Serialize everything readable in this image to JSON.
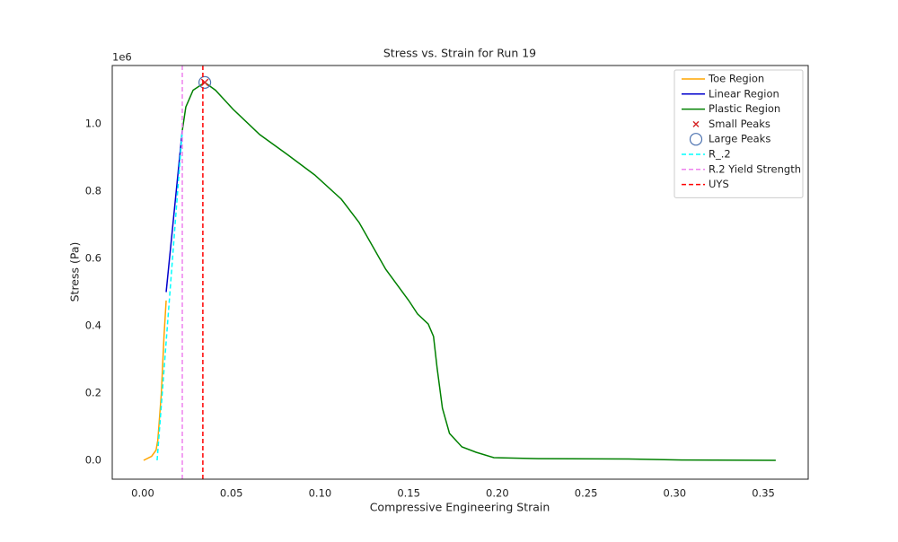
{
  "chart_data": {
    "type": "line",
    "title": "Stress vs. Strain for Run 19",
    "x_label": "Compressive Engineering Strain",
    "y_label": "Stress (Pa)",
    "y_offset_label": "1e6",
    "xlim": [
      -0.0172,
      0.3753
    ],
    "ylim": [
      -56000,
      1173300
    ],
    "xticks": [
      {
        "value": 0,
        "label": "0.00"
      },
      0.05,
      {
        "value": 0.1,
        "label": "0.10"
      },
      0.15,
      {
        "value": 0.2,
        "label": "0.20"
      },
      0.25,
      {
        "value": 0.3,
        "label": "0.30"
      },
      0.35
    ],
    "yticks": [
      {
        "value": 0,
        "label": "0.0"
      },
      {
        "value": 200000,
        "label": "0.2"
      },
      {
        "value": 400000,
        "label": "0.4"
      },
      {
        "value": 600000,
        "label": "0.6"
      },
      {
        "value": 800000,
        "label": "0.8"
      },
      {
        "value": 1000000,
        "label": "1.0"
      }
    ],
    "grid": false,
    "legend": "upper right",
    "series": [
      {
        "name": "Toe Region",
        "color": "orange",
        "style": "solid",
        "x": [
          0.0005,
          0.005,
          0.0075,
          0.0085,
          0.0105,
          0.012,
          0.0132
        ],
        "values": [
          0,
          12000,
          30000,
          60000,
          200000,
          370000,
          475000
        ]
      },
      {
        "name": "Linear Region",
        "color": "#0000cd",
        "style": "solid",
        "x": [
          0.0132,
          0.0223
        ],
        "values": [
          500000,
          980000
        ]
      },
      {
        "name": "Plastic Region",
        "color": "green",
        "style": "solid",
        "x": [
          0.0223,
          0.0243,
          0.0284,
          0.035,
          0.041,
          0.051,
          0.066,
          0.0815,
          0.097,
          0.112,
          0.122,
          0.137,
          0.15,
          0.155,
          0.161,
          0.164,
          0.166,
          0.169,
          0.173,
          0.18,
          0.188,
          0.198,
          0.223,
          0.274,
          0.304,
          0.357
        ],
        "values": [
          980000,
          1050000,
          1100000,
          1123000,
          1100000,
          1043000,
          968000,
          909000,
          848000,
          776000,
          707000,
          568000,
          475000,
          435000,
          405000,
          368000,
          275000,
          155000,
          80000,
          40000,
          24000,
          8000,
          5000,
          4000,
          1000,
          0
        ]
      },
      {
        "name": "Small Peaks",
        "color": "#d62728",
        "marker": "x",
        "x": [
          0.035
        ],
        "values": [
          1123000
        ]
      },
      {
        "name": "Large Peaks",
        "color": "#4c72b0",
        "marker": "o",
        "x": [
          0.035
        ],
        "values": [
          1123000
        ]
      },
      {
        "name": "R_.2",
        "color": "cyan",
        "style": "dashed",
        "x": [
          0.0081,
          0.0223
        ],
        "values": [
          0,
          980000
        ]
      },
      {
        "name": "R.2 Yield Strength",
        "color": "violet",
        "style": "dashed",
        "vline": 0.0223
      },
      {
        "name": "UYS",
        "color": "red",
        "style": "dashed",
        "vline": 0.0339
      }
    ]
  }
}
